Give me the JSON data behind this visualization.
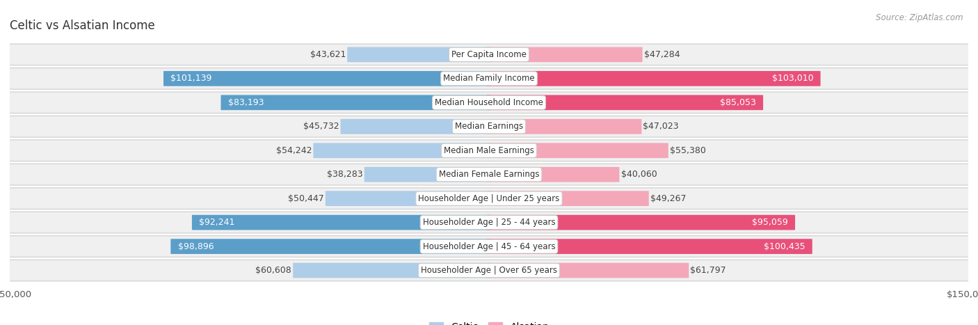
{
  "title": "Celtic vs Alsatian Income",
  "source": "Source: ZipAtlas.com",
  "categories": [
    "Per Capita Income",
    "Median Family Income",
    "Median Household Income",
    "Median Earnings",
    "Median Male Earnings",
    "Median Female Earnings",
    "Householder Age | Under 25 years",
    "Householder Age | 25 - 44 years",
    "Householder Age | 45 - 64 years",
    "Householder Age | Over 65 years"
  ],
  "celtic_values": [
    43621,
    101139,
    83193,
    45732,
    54242,
    38283,
    50447,
    92241,
    98896,
    60608
  ],
  "alsatian_values": [
    47284,
    103010,
    85053,
    47023,
    55380,
    40060,
    49267,
    95059,
    100435,
    61797
  ],
  "celtic_labels": [
    "$43,621",
    "$101,139",
    "$83,193",
    "$45,732",
    "$54,242",
    "$38,283",
    "$50,447",
    "$92,241",
    "$98,896",
    "$60,608"
  ],
  "alsatian_labels": [
    "$47,284",
    "$103,010",
    "$85,053",
    "$47,023",
    "$55,380",
    "$40,060",
    "$49,267",
    "$95,059",
    "$100,435",
    "$61,797"
  ],
  "max_value": 150000,
  "celtic_light": "#aecde8",
  "celtic_dark": "#5b9ec9",
  "alsatian_light": "#f4a7b9",
  "alsatian_dark": "#e8507a",
  "bg_color": "#ffffff",
  "row_bg": "#e8e8e8",
  "row_inner_bg": "#f4f4f4",
  "bar_height": 0.62,
  "label_fontsize": 9.0,
  "cat_fontsize": 8.5,
  "title_fontsize": 12,
  "legend_fontsize": 10,
  "dark_threshold": 75000
}
